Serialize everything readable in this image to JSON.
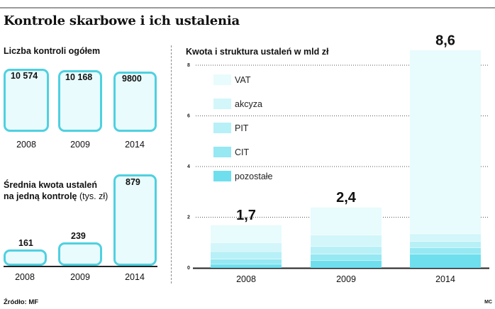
{
  "title": "Kontrole skarbowe i ich ustalenia",
  "source": "Źródło: MF",
  "credit": "MC",
  "colors": {
    "box_border": "#4fd0e0",
    "box_fill": "#e9fbfd",
    "vat": "#e8fbfd",
    "akcyza": "#d2f6fa",
    "pit": "#b8f0f7",
    "cit": "#96e8f2",
    "pozostale": "#6fdfee"
  },
  "kontrole": {
    "subtitle": "Liczba kontroli ogółem",
    "items": [
      {
        "year": "2008",
        "value": 10574,
        "label": "10 574"
      },
      {
        "year": "2009",
        "value": 10168,
        "label": "10 168"
      },
      {
        "year": "2014",
        "value": 9800,
        "label": "9800"
      }
    ]
  },
  "srednia": {
    "title": "Średnia kwota ustaleń na jedną kontrolę",
    "unit": "(tys. zł)",
    "items": [
      {
        "year": "2008",
        "value": 161,
        "label": "161"
      },
      {
        "year": "2009",
        "value": 239,
        "label": "239"
      },
      {
        "year": "2014",
        "value": 879,
        "label": "879"
      }
    ]
  },
  "chart_data": [
    {
      "type": "bar",
      "title": "Liczba kontroli ogółem",
      "categories": [
        "2008",
        "2009",
        "2014"
      ],
      "values": [
        10574,
        10168,
        9800
      ]
    },
    {
      "type": "bar",
      "title": "Średnia kwota ustaleń na jedną kontrolę (tys. zł)",
      "categories": [
        "2008",
        "2009",
        "2014"
      ],
      "values": [
        161,
        239,
        879
      ]
    },
    {
      "type": "bar",
      "stacked": true,
      "title": "Kwota i struktura ustaleń w mld zł",
      "categories": [
        "2008",
        "2009",
        "2014"
      ],
      "totals": [
        1.7,
        2.4,
        8.6
      ],
      "total_labels": [
        "1,7",
        "2,4",
        "8,6"
      ],
      "yticks": [
        0,
        2,
        4,
        6,
        8
      ],
      "ylim": [
        0,
        8.6
      ],
      "grid": true,
      "legend_position": "top-left",
      "series": [
        {
          "name": "pozostałe",
          "color": "#6fdfee",
          "values": [
            0.15,
            0.3,
            0.55
          ]
        },
        {
          "name": "CIT",
          "color": "#96e8f2",
          "values": [
            0.2,
            0.25,
            0.25
          ]
        },
        {
          "name": "PIT",
          "color": "#b8f0f7",
          "values": [
            0.3,
            0.3,
            0.25
          ]
        },
        {
          "name": "akcyza",
          "color": "#d2f6fa",
          "values": [
            0.35,
            0.45,
            0.3
          ]
        },
        {
          "name": "VAT",
          "color": "#e8fbfd",
          "values": [
            0.7,
            1.1,
            7.25
          ]
        }
      ],
      "legend_order": [
        "VAT",
        "akcyza",
        "PIT",
        "CIT",
        "pozostałe"
      ]
    }
  ]
}
